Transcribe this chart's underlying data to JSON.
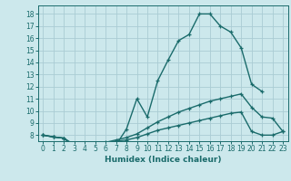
{
  "xlabel": "Humidex (Indice chaleur)",
  "bg_color": "#cce8ec",
  "grid_color": "#aaccd4",
  "line_color": "#1a6b6b",
  "xlim": [
    -0.5,
    23.5
  ],
  "ylim": [
    7.5,
    18.7
  ],
  "yticks": [
    8,
    9,
    10,
    11,
    12,
    13,
    14,
    15,
    16,
    17,
    18
  ],
  "xticks": [
    0,
    1,
    2,
    3,
    4,
    5,
    6,
    7,
    8,
    9,
    10,
    11,
    12,
    13,
    14,
    15,
    16,
    17,
    18,
    19,
    20,
    21,
    22,
    23
  ],
  "line_main_x": [
    0,
    1,
    2,
    3,
    4,
    5,
    6,
    7,
    8,
    9,
    10,
    11,
    12,
    13,
    14,
    15,
    16,
    17,
    18,
    19,
    20,
    21
  ],
  "line_main_y": [
    8.0,
    7.85,
    7.75,
    7.0,
    7.0,
    7.0,
    7.1,
    7.2,
    8.5,
    11.0,
    9.5,
    12.5,
    14.2,
    15.8,
    16.3,
    18.0,
    18.0,
    17.0,
    16.5,
    15.2,
    12.2,
    11.6
  ],
  "line_med_x": [
    0,
    1,
    2,
    3,
    4,
    5,
    6,
    7,
    8,
    9,
    10,
    11,
    12,
    13,
    14,
    15,
    16,
    17,
    18,
    19,
    20,
    21,
    22,
    23
  ],
  "line_med_y": [
    8.0,
    7.85,
    7.75,
    7.2,
    7.2,
    7.3,
    7.4,
    7.6,
    7.8,
    8.1,
    8.6,
    9.1,
    9.5,
    9.9,
    10.2,
    10.5,
    10.8,
    11.0,
    11.2,
    11.4,
    10.3,
    9.5,
    9.4,
    8.3
  ],
  "line_low_x": [
    0,
    1,
    2,
    3,
    4,
    5,
    6,
    7,
    8,
    9,
    10,
    11,
    12,
    13,
    14,
    15,
    16,
    17,
    18,
    19,
    20,
    21,
    22,
    23
  ],
  "line_low_y": [
    8.0,
    7.85,
    7.75,
    7.1,
    7.1,
    7.2,
    7.3,
    7.5,
    7.6,
    7.8,
    8.1,
    8.4,
    8.6,
    8.8,
    9.0,
    9.2,
    9.4,
    9.6,
    9.8,
    9.9,
    8.3,
    8.0,
    8.0,
    8.3
  ]
}
